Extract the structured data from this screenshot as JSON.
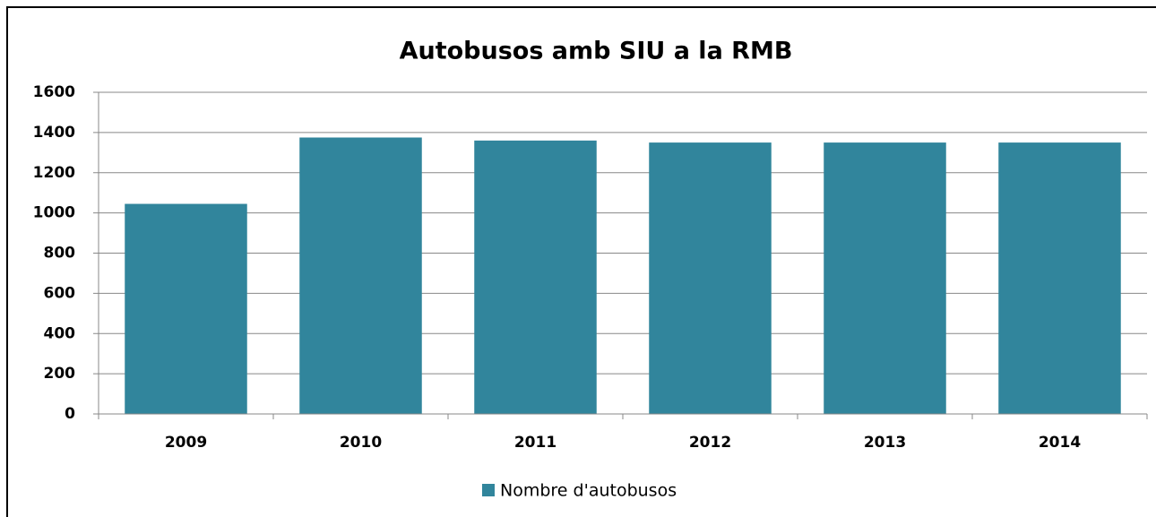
{
  "chart_data": {
    "type": "bar",
    "title": "Autobusos amb SIU a la RMB",
    "categories": [
      "2009",
      "2010",
      "2011",
      "2012",
      "2013",
      "2014"
    ],
    "series": [
      {
        "name": "Nombre d'autobusos",
        "color": "#31859c",
        "values": [
          1045,
          1375,
          1360,
          1350,
          1350,
          1350
        ]
      }
    ],
    "ylim": [
      0,
      1600
    ],
    "yticks": [
      0,
      200,
      400,
      600,
      800,
      1000,
      1200,
      1400,
      1600
    ],
    "grid": true,
    "legend": "bottom"
  }
}
